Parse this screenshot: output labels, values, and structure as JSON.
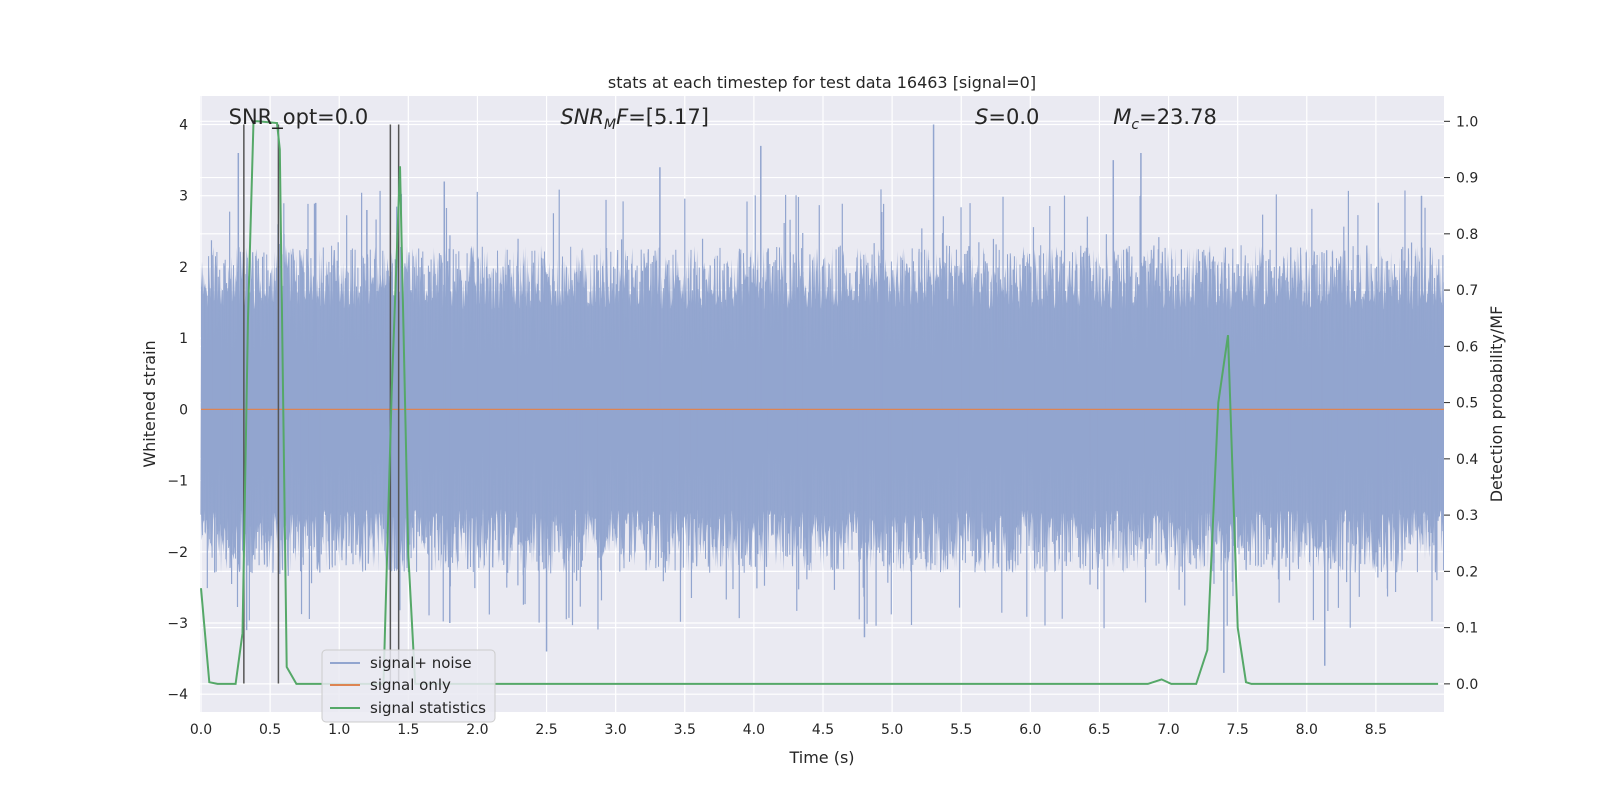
{
  "chart_data": {
    "type": "line",
    "title": "stats at each timestep for test data 16463 [signal=0]",
    "xlabel": "Time (s)",
    "ylabel": "Whitened strain",
    "ylabel_right": "Detection probability/MF",
    "xlim": [
      0,
      9.0
    ],
    "ylim": [
      -4.25,
      4.4
    ],
    "ylim_right": [
      -0.05,
      1.045
    ],
    "x_ticks": [
      "0.0",
      "0.5",
      "1.0",
      "1.5",
      "2.0",
      "2.5",
      "3.0",
      "3.5",
      "4.0",
      "4.5",
      "5.0",
      "5.5",
      "6.0",
      "6.5",
      "7.0",
      "7.5",
      "8.0",
      "8.5"
    ],
    "y_ticks": [
      "−4",
      "−3",
      "−2",
      "−1",
      "0",
      "1",
      "2",
      "3",
      "4"
    ],
    "y_ticks_right": [
      "0.0",
      "0.1",
      "0.2",
      "0.3",
      "0.4",
      "0.5",
      "0.6",
      "0.7",
      "0.8",
      "0.9",
      "1.0"
    ],
    "grid": true,
    "legend_position": "lower-left",
    "annotations": [
      {
        "label": "SNR_opt=0.0",
        "math": false,
        "x": 0.2
      },
      {
        "label": "SNR_MF=[5.17]",
        "math": true,
        "base": "SNR",
        "sub": "M",
        "rest": "F=[5.17]",
        "x": 2.6
      },
      {
        "label": "S=0.0",
        "math": true,
        "base": "S",
        "sub": "",
        "rest": "=0.0",
        "x": 5.6
      },
      {
        "label": "M_c=23.78",
        "math": true,
        "base": "M",
        "sub": "c",
        "rest": "=23.78",
        "x": 6.6
      }
    ],
    "series": [
      {
        "name": "signal+ noise",
        "color": "#92a5cf",
        "axis": "left",
        "style": "noise",
        "x_range": [
          0,
          9.0
        ],
        "amplitude_typical": 1.8,
        "peaks": [
          {
            "x": 0.27,
            "y": 3.6
          },
          {
            "x": 0.33,
            "y": -3.1
          },
          {
            "x": 0.83,
            "y": 2.9
          },
          {
            "x": 1.2,
            "y": 2.8
          },
          {
            "x": 1.76,
            "y": 3.2
          },
          {
            "x": 1.8,
            "y": -3.0
          },
          {
            "x": 2.5,
            "y": -3.4
          },
          {
            "x": 3.32,
            "y": 3.4
          },
          {
            "x": 4.05,
            "y": 3.7
          },
          {
            "x": 4.8,
            "y": -3.2
          },
          {
            "x": 5.3,
            "y": 4.0
          },
          {
            "x": 6.6,
            "y": 3.5
          },
          {
            "x": 6.8,
            "y": 3.6
          },
          {
            "x": 7.4,
            "y": -3.7
          },
          {
            "x": 8.13,
            "y": -3.6
          },
          {
            "x": 8.83,
            "y": 3.0
          }
        ]
      },
      {
        "name": "signal only",
        "color": "#dd8452",
        "axis": "left",
        "x": [
          0,
          9.0
        ],
        "y": [
          0,
          0
        ]
      },
      {
        "name": "signal statistics",
        "color": "#55a868",
        "axis": "right",
        "x": [
          0.0,
          0.06,
          0.12,
          0.25,
          0.3,
          0.34,
          0.38,
          0.41,
          0.55,
          0.57,
          0.62,
          0.69,
          1.2,
          1.32,
          1.38,
          1.44,
          1.5,
          1.55,
          1.6,
          6.85,
          6.95,
          7.02,
          7.2,
          7.28,
          7.36,
          7.43,
          7.5,
          7.56,
          7.6,
          8.95
        ],
        "y": [
          0.17,
          0.003,
          0.0,
          0.0,
          0.09,
          0.65,
          1.0,
          1.0,
          0.997,
          0.95,
          0.03,
          0.0,
          0.0,
          0.0,
          0.52,
          0.92,
          0.23,
          0.0,
          0.0,
          0.0,
          0.008,
          0.0,
          0.0,
          0.06,
          0.5,
          0.62,
          0.1,
          0.003,
          0.0,
          0.0
        ]
      }
    ],
    "vertical_lines": [
      {
        "x": 0.31,
        "ymin": -3.85,
        "ymax": 4.0
      },
      {
        "x": 0.56,
        "ymin": -3.85,
        "ymax": 4.0
      },
      {
        "x": 1.37,
        "ymin": -3.85,
        "ymax": 4.0
      },
      {
        "x": 1.43,
        "ymin": -3.85,
        "ymax": 4.0
      }
    ]
  }
}
